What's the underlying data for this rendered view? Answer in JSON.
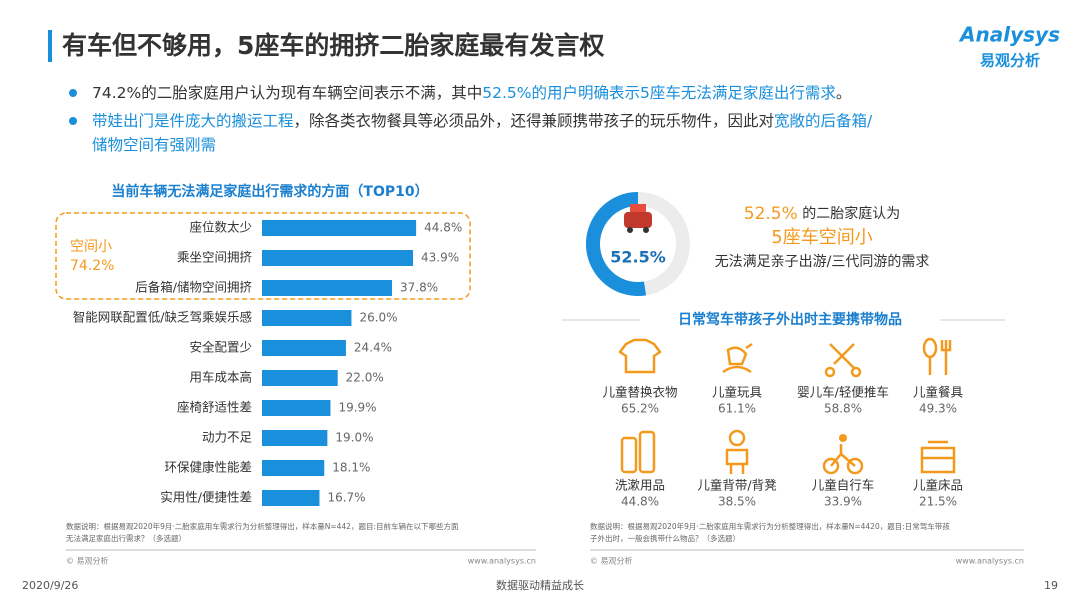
{
  "header": {
    "title": "有车但不够用，5座车的拥挤二胎家庭最有发言权",
    "logo_top": "Analysys",
    "logo_bottom": "易观分析"
  },
  "bullets": [
    {
      "lines": [
        [
          {
            "text": "74.2%的二胎家庭用户认为现有车辆空间表示不满，其中",
            "highlight": false
          },
          {
            "text": "52.5%的用户明确表示5座车无法满足家庭出行需求",
            "highlight": true
          },
          {
            "text": "。",
            "highlight": false
          }
        ]
      ]
    },
    {
      "lines": [
        [
          {
            "text": "带娃出门是件庞大的搬运工程",
            "highlight": true
          },
          {
            "text": "，除各类衣物餐具等必须品外，还得兼顾携带孩子的玩乐物件，因此对",
            "highlight": false
          },
          {
            "text": "宽敞的后备箱/",
            "highlight": true
          }
        ],
        [
          {
            "text": "储物空间有强刚需",
            "highlight": true
          }
        ]
      ]
    }
  ],
  "chart_data": [
    {
      "type": "bar",
      "orientation": "horizontal",
      "title": "当前车辆无法满足家庭出行需求的方面（TOP10）",
      "categories": [
        "座位数太少",
        "乘坐空间拥挤",
        "后备箱/储物空间拥挤",
        "智能网联配置低/缺乏驾乘娱乐感",
        "安全配置少",
        "用车成本高",
        "座椅舒适性差",
        "动力不足",
        "环保健康性能差",
        "实用性/便捷性差"
      ],
      "values": [
        44.8,
        43.9,
        37.8,
        26.0,
        24.4,
        22.0,
        19.9,
        19.0,
        18.1,
        16.7
      ],
      "value_labels": [
        "44.8%",
        "43.9%",
        "37.8%",
        "26.0%",
        "24.4%",
        "22.0%",
        "19.9%",
        "19.0%",
        "18.1%",
        "16.7%"
      ],
      "color": "#1a8fdc",
      "group_label": [
        "空间小",
        "74.2%"
      ],
      "group_color": "#f39a1e"
    },
    {
      "type": "pie",
      "values": [
        52.5
      ],
      "value_labels": [
        "52.5%"
      ],
      "color": "#1a8fdc"
    }
  ],
  "callout": {
    "lines": [
      [
        {
          "text": "52.5%",
          "highlight": true
        },
        {
          "text": " 的二胎家庭认为",
          "highlight": false
        }
      ],
      [
        {
          "text": "5座车空间小",
          "highlight": true
        }
      ],
      [
        {
          "text": "无法满足亲子出游/三代同游的需求",
          "highlight": false
        }
      ]
    ]
  },
  "items_title": "日常驾车带孩子外出时主要携带物品",
  "items": [
    {
      "label": "儿童替换衣物",
      "value": "65.2%"
    },
    {
      "label": "儿童玩具",
      "value": "61.1%"
    },
    {
      "label": "婴儿车/轻便推车",
      "value": "58.8%"
    },
    {
      "label": "儿童餐具",
      "value": "49.3%"
    },
    {
      "label": "洗漱用品",
      "value": "44.8%"
    },
    {
      "label": "儿童背带/背凳",
      "value": "38.5%"
    },
    {
      "label": "儿童自行车",
      "value": "33.9%"
    },
    {
      "label": "儿童床品",
      "value": "21.5%"
    }
  ],
  "notes": {
    "left": [
      "数据说明：根据易观2020年9月·二胎家庭用车需求行为分析整理得出，样本量N=442，题目:目前车辆在以下哪些方面",
      "无法满足家庭出行需求？（多选题）"
    ],
    "right": [
      "数据说明：根据易观2020年9月·二胎家庭用车需求行为分析整理得出，样本量N=4420，题目:日常驾车带孩",
      "子外出时，一般会携带什么物品？（多选题）"
    ],
    "source": "© 易观分析",
    "url": "www.analysys.cn"
  },
  "footer": {
    "date": "2020/9/26",
    "slogan": "数据驱动精益成长",
    "page": "19"
  }
}
